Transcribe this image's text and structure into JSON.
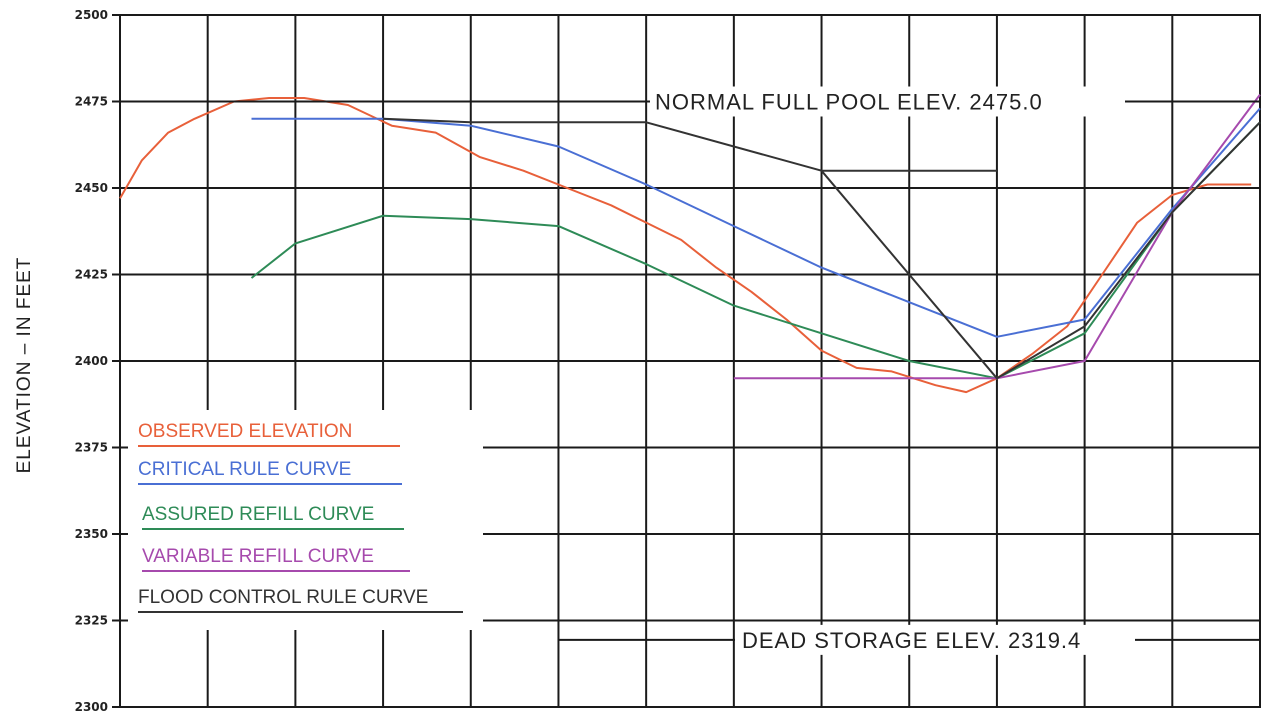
{
  "chart_data": {
    "type": "line",
    "title": "",
    "ylabel": "ELEVATION – IN FEET",
    "xlabel": "",
    "ylim": [
      2300,
      2500
    ],
    "xlim": [
      0,
      13
    ],
    "grid": true,
    "yticks": [
      {
        "value": 2500,
        "label": "2500"
      },
      {
        "value": 2475,
        "label": "2475"
      },
      {
        "value": 2450,
        "label": "2450"
      },
      {
        "value": 2425,
        "label": "2425"
      },
      {
        "value": 2400,
        "label": "2400"
      },
      {
        "value": 2375,
        "label": "2375"
      },
      {
        "value": 2350,
        "label": "2350"
      },
      {
        "value": 2325,
        "label": "2325"
      },
      {
        "value": 2300,
        "label": "2300"
      }
    ],
    "legend_placement": "lower-left",
    "series": [
      {
        "name": "OBSERVED ELEVATION",
        "color": "#e8603a",
        "x": [
          0,
          0.25,
          0.55,
          0.85,
          1.3,
          1.7,
          2.1,
          2.6,
          3.1,
          3.6,
          4.1,
          4.6,
          5.1,
          5.6,
          6.0,
          6.4,
          6.8,
          7.2,
          7.6,
          8.0,
          8.4,
          8.8,
          9.3,
          9.65,
          10.0,
          10.4,
          10.8,
          11.2,
          11.6,
          12.0,
          12.4,
          12.9
        ],
        "y": [
          2447,
          2458,
          2466,
          2470,
          2475,
          2476,
          2476,
          2474,
          2468,
          2466,
          2459,
          2455,
          2450,
          2445,
          2440,
          2435,
          2427,
          2420,
          2412,
          2403,
          2398,
          2397,
          2393,
          2391,
          2395,
          2402,
          2410,
          2425,
          2440,
          2448,
          2451,
          2451
        ]
      },
      {
        "name": "CRITICAL RULE CURVE",
        "color": "#4a6fd4",
        "x": [
          1.5,
          3,
          4,
          5,
          6,
          7,
          8,
          9,
          10,
          11,
          12,
          13
        ],
        "y": [
          2470,
          2470,
          2468,
          2462,
          2451,
          2439,
          2427,
          2417,
          2407,
          2412,
          2444,
          2473
        ]
      },
      {
        "name": "ASSURED REFILL CURVE",
        "color": "#2e8b57",
        "x": [
          1.5,
          2,
          3,
          4,
          5,
          6,
          7,
          8,
          9,
          10,
          11,
          12,
          13
        ],
        "y": [
          2424,
          2434,
          2442,
          2441,
          2439,
          2428,
          2416,
          2408,
          2400,
          2395,
          2408,
          2443,
          2469
        ]
      },
      {
        "name": "VARIABLE REFILL CURVE",
        "color": "#a64aad",
        "x": [
          7,
          10,
          11,
          12,
          13
        ],
        "y": [
          2395,
          2395,
          2400,
          2443,
          2477
        ]
      },
      {
        "name": "FLOOD CONTROL RULE CURVE",
        "color": "#333333",
        "x": [
          3,
          4,
          6,
          8,
          10,
          11,
          12,
          13
        ],
        "y": [
          2470,
          2469,
          2469,
          2455,
          2395,
          2410,
          2443,
          2469
        ]
      }
    ],
    "reference_lines": [
      {
        "label": "NORMAL FULL POOL ELEV. 2475.0",
        "y": 2475
      },
      {
        "label": "DEAD STORAGE ELEV. 2319.4",
        "y": 2319.4
      }
    ],
    "segments": [
      {
        "x": [
          8,
          10
        ],
        "y": [
          2455,
          2455
        ],
        "color": "#333333"
      }
    ],
    "colors": {
      "grid": "#1a1a1a",
      "axis_text": "#222222",
      "background": "#ffffff"
    }
  }
}
